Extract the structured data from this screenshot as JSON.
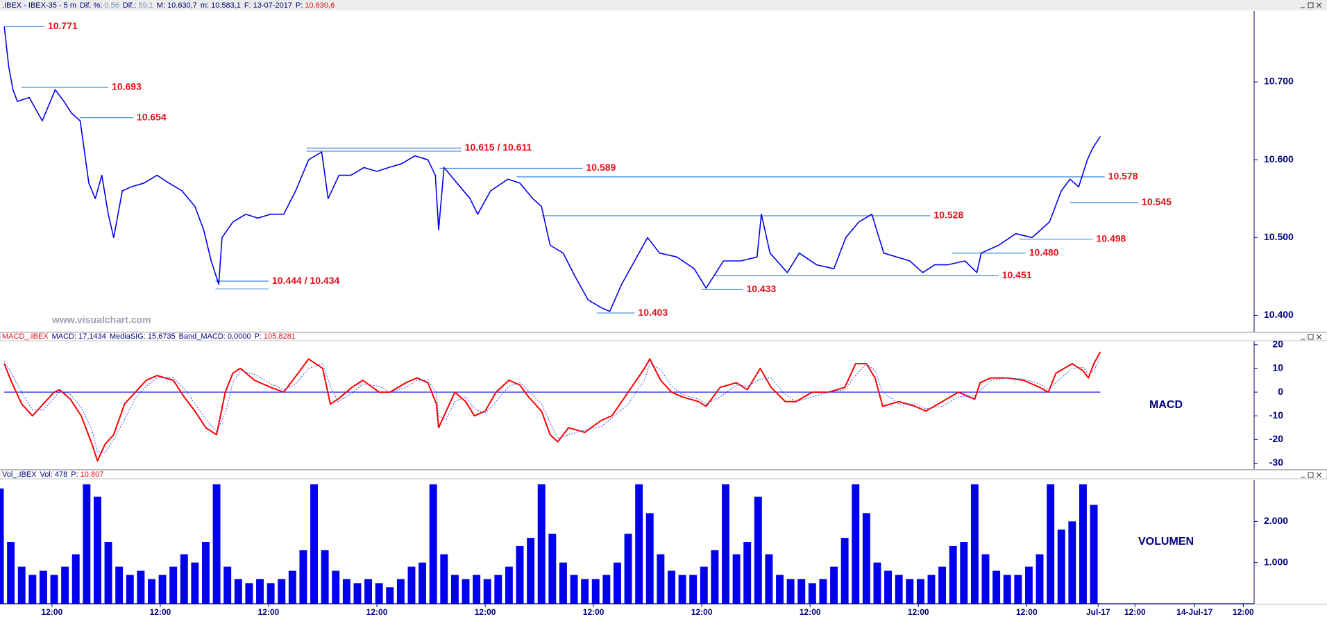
{
  "chart_data": [
    {
      "type": "line",
      "title": ".IBEX - IBEX-35 -  5 m",
      "title_color": "#000080",
      "stats": [
        {
          "label": "Dif. %:",
          "text": "0,56",
          "color": "#7a9cc0"
        },
        {
          "label": "Dif.:",
          "text": "59,1",
          "color": "#7a9cc0"
        },
        {
          "label": "M:",
          "text": "10.630,7"
        },
        {
          "label": "m:",
          "text": "10.583,1"
        },
        {
          "label": "F:",
          "text": "13-07-2017"
        },
        {
          "label": "P:",
          "text": "10.630,6",
          "color": "#e3101a"
        }
      ],
      "watermark": "www.visualchart.com",
      "color": "#0000ee",
      "level_color": "#3a86d8",
      "label_color": "#e3101a",
      "xlim": [
        0,
        11.58
      ],
      "ylim": [
        10.379,
        10.791
      ],
      "yticks": [
        {
          "value": 10.4,
          "label": "10.400"
        },
        {
          "value": 10.5,
          "label": "10.500"
        },
        {
          "value": 10.6,
          "label": "10.600"
        },
        {
          "value": 10.7,
          "label": "10.700"
        }
      ],
      "x": [
        0.04,
        0.08,
        0.12,
        0.16,
        0.27,
        0.39,
        0.51,
        0.59,
        0.66,
        0.74,
        0.82,
        0.88,
        0.94,
        1.0,
        1.05,
        1.13,
        1.21,
        1.33,
        1.45,
        1.56,
        1.68,
        1.8,
        1.88,
        1.95,
        2.02,
        2.05,
        2.15,
        2.27,
        2.38,
        2.5,
        2.62,
        2.73,
        2.85,
        2.97,
        3.03,
        3.13,
        3.24,
        3.36,
        3.48,
        3.59,
        3.71,
        3.83,
        3.95,
        4.02,
        4.05,
        4.1,
        4.22,
        4.34,
        4.41,
        4.53,
        4.69,
        4.8,
        4.92,
        5.0,
        5.08,
        5.2,
        5.31,
        5.43,
        5.55,
        5.63,
        5.74,
        5.86,
        5.98,
        6.09,
        6.25,
        6.41,
        6.52,
        6.68,
        6.84,
        6.99,
        7.03,
        7.11,
        7.27,
        7.38,
        7.54,
        7.7,
        7.81,
        7.93,
        8.05,
        8.16,
        8.28,
        8.4,
        8.52,
        8.63,
        8.75,
        8.91,
        9.02,
        9.06,
        9.22,
        9.38,
        9.53,
        9.69,
        9.8,
        9.88,
        9.96,
        10.04,
        10.09,
        10.16
      ],
      "values": [
        10.771,
        10.72,
        10.69,
        10.675,
        10.68,
        10.65,
        10.69,
        10.675,
        10.66,
        10.65,
        10.57,
        10.55,
        10.58,
        10.53,
        10.5,
        10.56,
        10.565,
        10.57,
        10.58,
        10.57,
        10.56,
        10.54,
        10.51,
        10.47,
        10.44,
        10.5,
        10.52,
        10.53,
        10.525,
        10.53,
        10.53,
        10.56,
        10.6,
        10.61,
        10.55,
        10.58,
        10.58,
        10.59,
        10.585,
        10.59,
        10.595,
        10.605,
        10.6,
        10.58,
        10.51,
        10.59,
        10.57,
        10.55,
        10.53,
        10.56,
        10.575,
        10.57,
        10.55,
        10.54,
        10.49,
        10.48,
        10.45,
        10.42,
        10.41,
        10.405,
        10.44,
        10.47,
        10.5,
        10.48,
        10.475,
        10.46,
        10.435,
        10.47,
        10.47,
        10.475,
        10.53,
        10.48,
        10.455,
        10.48,
        10.465,
        10.46,
        10.5,
        10.52,
        10.53,
        10.48,
        10.475,
        10.47,
        10.455,
        10.465,
        10.465,
        10.47,
        10.455,
        10.48,
        10.49,
        10.505,
        10.5,
        10.52,
        10.56,
        10.575,
        10.565,
        10.6,
        10.615,
        10.63
      ],
      "levels": [
        {
          "values": [
            10.771
          ],
          "label": "10.771",
          "x": [
            0.04,
            0.41
          ]
        },
        {
          "values": [
            10.693
          ],
          "label": "10.693",
          "x": [
            0.2,
            1.0
          ]
        },
        {
          "values": [
            10.654
          ],
          "label": "10.654",
          "x": [
            0.74,
            1.23
          ]
        },
        {
          "values": [
            10.615,
            10.611
          ],
          "label": "10.615 / 10.611",
          "x": [
            2.83,
            4.26
          ]
        },
        {
          "values": [
            10.589
          ],
          "label": "10.589",
          "x": [
            4.06,
            5.38
          ]
        },
        {
          "values": [
            10.578
          ],
          "label": "10.578",
          "x": [
            4.77,
            10.2
          ]
        },
        {
          "values": [
            10.545
          ],
          "label": "10.545",
          "x": [
            9.88,
            10.51
          ]
        },
        {
          "values": [
            10.528
          ],
          "label": "10.528",
          "x": [
            5.0,
            8.59
          ]
        },
        {
          "values": [
            10.498
          ],
          "label": "10.498",
          "x": [
            9.41,
            10.09
          ]
        },
        {
          "values": [
            10.48
          ],
          "label": "10.480",
          "x": [
            8.79,
            9.47
          ]
        },
        {
          "values": [
            10.451
          ],
          "label": "10.451",
          "x": [
            6.6,
            9.22
          ]
        },
        {
          "values": [
            10.433
          ],
          "label": "10.433",
          "x": [
            6.48,
            6.86
          ]
        },
        {
          "values": [
            10.444,
            10.434
          ],
          "label": "10.444 / 10.434",
          "x": [
            1.99,
            2.48
          ]
        },
        {
          "values": [
            10.403
          ],
          "label": "10.403",
          "x": [
            5.51,
            5.86
          ]
        }
      ]
    },
    {
      "type": "line",
      "title": "MACD_.IBEX",
      "title_color": "#e3101a",
      "stats": [
        {
          "label": "MACD:",
          "text": "17,1434"
        },
        {
          "label": "MediaSIG:",
          "text": "15,6735"
        },
        {
          "label": "Band_MACD:",
          "text": "0,0000"
        },
        {
          "label": "P:",
          "text": "105,8281",
          "color": "#e3101a"
        }
      ],
      "label": "MACD",
      "band": 0,
      "band_color": "#0000ee",
      "xlim": [
        0,
        11.58
      ],
      "ylim": [
        -32.5,
        21.4
      ],
      "yticks": [
        -30,
        -20,
        -10,
        0,
        10,
        20
      ],
      "x": [
        0.04,
        0.1,
        0.2,
        0.3,
        0.4,
        0.5,
        0.55,
        0.65,
        0.75,
        0.85,
        0.9,
        0.97,
        1.05,
        1.15,
        1.25,
        1.35,
        1.45,
        1.6,
        1.7,
        1.8,
        1.9,
        2.0,
        2.08,
        2.15,
        2.22,
        2.35,
        2.5,
        2.62,
        2.72,
        2.85,
        2.98,
        3.05,
        3.12,
        3.25,
        3.35,
        3.5,
        3.6,
        3.75,
        3.85,
        3.95,
        4.03,
        4.05,
        4.12,
        4.2,
        4.3,
        4.38,
        4.48,
        4.58,
        4.7,
        4.8,
        4.88,
        5.0,
        5.08,
        5.15,
        5.25,
        5.4,
        5.55,
        5.65,
        5.8,
        5.95,
        6.0,
        6.1,
        6.2,
        6.3,
        6.45,
        6.52,
        6.65,
        6.8,
        6.9,
        7.02,
        7.12,
        7.25,
        7.35,
        7.5,
        7.65,
        7.8,
        7.9,
        8.0,
        8.08,
        8.15,
        8.3,
        8.45,
        8.55,
        8.7,
        8.85,
        9.0,
        9.05,
        9.15,
        9.3,
        9.45,
        9.6,
        9.68,
        9.75,
        9.9,
        10.0,
        10.05,
        10.1,
        10.16
      ],
      "series": [
        {
          "color": "#ff0000",
          "dash": "solid",
          "values": [
            12,
            5,
            -5,
            -10,
            -5,
            0,
            1,
            -3,
            -10,
            -22,
            -29,
            -22,
            -18,
            -5,
            0,
            5,
            7,
            5,
            -2,
            -8,
            -15,
            -18,
            0,
            8,
            10,
            5,
            2,
            0,
            6,
            14,
            10,
            -5,
            -3,
            2,
            5,
            0,
            0,
            4,
            6,
            4,
            -5,
            -15,
            -8,
            0,
            -4,
            -10,
            -8,
            0,
            5,
            3,
            -2,
            -8,
            -18,
            -21,
            -15,
            -17,
            -12,
            -10,
            0,
            10,
            14,
            5,
            0,
            -2,
            -4,
            -6,
            2,
            4,
            1,
            10,
            2,
            -4,
            -4,
            0,
            0,
            2,
            12,
            12,
            6,
            -6,
            -4,
            -6,
            -8,
            -4,
            0,
            -3,
            4,
            6,
            6,
            5,
            2,
            0,
            8,
            12,
            9,
            6,
            12,
            17
          ]
        },
        {
          "color": "#3050ff",
          "dash": "dotted",
          "values": [
            13,
            8.5,
            0,
            -7.5,
            -7.5,
            -2.5,
            0.5,
            -1,
            -6.5,
            -16,
            -25.5,
            -25.5,
            -20,
            -11.5,
            -2.5,
            2.5,
            6,
            6,
            1.5,
            -5,
            -11.5,
            -16.5,
            -9,
            4,
            9,
            7.5,
            3.5,
            1,
            3,
            10,
            12,
            2.5,
            -4,
            -0.5,
            3.5,
            2.5,
            0,
            2,
            5,
            5,
            -0.5,
            -10,
            -11.5,
            -4,
            -2,
            -7,
            -9,
            -4,
            2.5,
            4,
            0.5,
            -5,
            -13,
            -19.5,
            -18,
            -16,
            -14.5,
            -11,
            -5,
            5,
            12,
            9.5,
            2.5,
            -1,
            -3,
            -5,
            -2,
            3,
            2.5,
            5.5,
            6,
            -1,
            -4,
            -2,
            0,
            1,
            7,
            12,
            9,
            0,
            -5,
            -5,
            -7,
            -6,
            -2,
            -1.5,
            0.5,
            5,
            6,
            5.5,
            3.5,
            1,
            4,
            10,
            10.5,
            7.5,
            9,
            14.5
          ]
        }
      ]
    },
    {
      "type": "bar",
      "title": "Vol_.IBEX",
      "title_color": "#000080",
      "stats": [
        {
          "label": "Vol:",
          "text": "478"
        },
        {
          "label": "P:",
          "text": "10.807",
          "color": "#e3101a"
        }
      ],
      "label": "VOLUMEN",
      "color": "#0000ee",
      "xlim": [
        0,
        11.58
      ],
      "ylim": [
        0,
        3000
      ],
      "yticks": [
        {
          "value": 1000,
          "label": "1.000"
        },
        {
          "value": 2000,
          "label": "2.000"
        }
      ],
      "xticks": [
        {
          "value": 0.48,
          "label": "12:00"
        },
        {
          "value": 1.48,
          "label": "12:00"
        },
        {
          "value": 2.48,
          "label": "12:00"
        },
        {
          "value": 3.48,
          "label": "12:00"
        },
        {
          "value": 4.48,
          "label": "12:00"
        },
        {
          "value": 5.48,
          "label": "12:00"
        },
        {
          "value": 6.48,
          "label": "12:00"
        },
        {
          "value": 7.48,
          "label": "12:00"
        },
        {
          "value": 8.48,
          "label": "12:00"
        },
        {
          "value": 9.48,
          "label": "12:00"
        },
        {
          "value": 10.14,
          "label": "Jul-17"
        },
        {
          "value": 10.48,
          "label": "12:00"
        },
        {
          "value": 11.03,
          "label": "14-Jul-17"
        },
        {
          "value": 11.48,
          "label": "12:00"
        }
      ],
      "x": [
        0.0,
        0.1,
        0.2,
        0.3,
        0.4,
        0.5,
        0.6,
        0.7,
        0.8,
        0.9,
        1.0,
        1.1,
        1.2,
        1.3,
        1.4,
        1.5,
        1.6,
        1.7,
        1.8,
        1.9,
        2.0,
        2.1,
        2.2,
        2.3,
        2.4,
        2.5,
        2.6,
        2.7,
        2.8,
        2.9,
        3.0,
        3.1,
        3.2,
        3.3,
        3.4,
        3.5,
        3.6,
        3.7,
        3.8,
        3.9,
        4.0,
        4.1,
        4.2,
        4.3,
        4.4,
        4.5,
        4.6,
        4.7,
        4.8,
        4.9,
        5.0,
        5.1,
        5.2,
        5.3,
        5.4,
        5.5,
        5.6,
        5.7,
        5.8,
        5.9,
        6.0,
        6.1,
        6.2,
        6.3,
        6.4,
        6.5,
        6.6,
        6.7,
        6.8,
        6.9,
        7.0,
        7.1,
        7.2,
        7.3,
        7.4,
        7.5,
        7.6,
        7.7,
        7.8,
        7.9,
        8.0,
        8.1,
        8.2,
        8.3,
        8.4,
        8.5,
        8.6,
        8.7,
        8.8,
        8.9,
        9.0,
        9.1,
        9.2,
        9.3,
        9.4,
        9.5,
        9.6,
        9.7,
        9.8,
        9.9,
        10.0,
        10.1
      ],
      "values": [
        2800,
        1500,
        900,
        700,
        800,
        700,
        900,
        1200,
        2900,
        2600,
        1500,
        900,
        700,
        800,
        600,
        700,
        900,
        1200,
        1000,
        1500,
        2900,
        900,
        600,
        500,
        600,
        500,
        600,
        800,
        1300,
        2900,
        1300,
        800,
        600,
        500,
        600,
        500,
        400,
        600,
        900,
        1000,
        2900,
        1200,
        700,
        600,
        700,
        600,
        700,
        900,
        1400,
        1600,
        2900,
        1700,
        1000,
        700,
        600,
        600,
        700,
        1000,
        1700,
        2900,
        2200,
        1200,
        800,
        700,
        700,
        900,
        1300,
        2900,
        1200,
        1500,
        2600,
        1200,
        700,
        600,
        600,
        500,
        600,
        900,
        1600,
        2900,
        2200,
        1000,
        800,
        700,
        600,
        600,
        700,
        900,
        1400,
        1500,
        2900,
        1200,
        800,
        700,
        700,
        900,
        1200,
        2900,
        1800,
        2000,
        2900,
        2400
      ]
    }
  ]
}
